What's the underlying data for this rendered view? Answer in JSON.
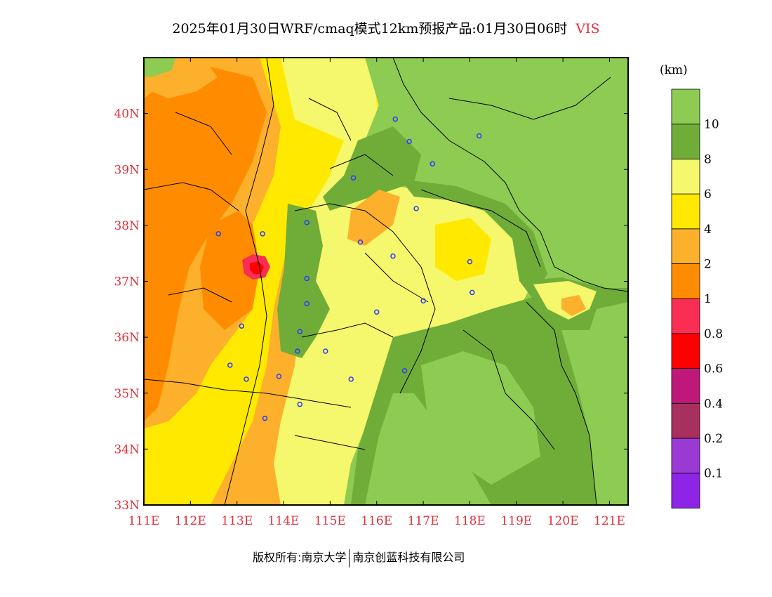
{
  "title": {
    "text": "2025年01月30日WRF/cmaq模式12km预报产品:01月30日06时",
    "variable": "VIS"
  },
  "unit": "(km)",
  "footer": {
    "copyright": "版权所有:南京大学",
    "company": "南京创蓝科技有限公司"
  },
  "map": {
    "lon_range": [
      111,
      121.4
    ],
    "lat_range": [
      33,
      41
    ],
    "x_ticks": [
      "111E",
      "112E",
      "113E",
      "114E",
      "115E",
      "116E",
      "117E",
      "118E",
      "119E",
      "120E",
      "121E"
    ],
    "y_ticks": [
      "33N",
      "34N",
      "35N",
      "36N",
      "37N",
      "38N",
      "39N",
      "40N"
    ],
    "stations": [
      [
        116.4,
        39.9
      ],
      [
        116.7,
        39.5
      ],
      [
        117.2,
        39.1
      ],
      [
        118.2,
        39.6
      ],
      [
        115.5,
        38.85
      ],
      [
        116.85,
        38.3
      ],
      [
        114.5,
        38.05
      ],
      [
        113.55,
        37.85
      ],
      [
        112.6,
        37.85
      ],
      [
        115.65,
        37.7
      ],
      [
        116.35,
        37.45
      ],
      [
        118.0,
        37.35
      ],
      [
        114.5,
        37.05
      ],
      [
        114.5,
        36.6
      ],
      [
        116.0,
        36.45
      ],
      [
        117.0,
        36.65
      ],
      [
        118.05,
        36.8
      ],
      [
        114.35,
        36.1
      ],
      [
        113.1,
        36.2
      ],
      [
        114.3,
        35.75
      ],
      [
        114.9,
        35.75
      ],
      [
        112.85,
        35.5
      ],
      [
        113.9,
        35.3
      ],
      [
        113.2,
        35.25
      ],
      [
        115.45,
        35.25
      ],
      [
        116.6,
        35.4
      ],
      [
        114.35,
        34.8
      ],
      [
        113.6,
        34.55
      ]
    ]
  },
  "legend": {
    "colors": [
      "#8e24e6",
      "#9a39d4",
      "#a8305e",
      "#c0177a",
      "#ff0000",
      "#fa2d55",
      "#ff8c00",
      "#fdb02b",
      "#ffe900",
      "#f5f76c",
      "#6fad38",
      "#8dcb52"
    ],
    "labels": [
      "0.1",
      "0.2",
      "0.4",
      "0.6",
      "0.8",
      "1",
      "2",
      "4",
      "6",
      "8",
      "10"
    ]
  }
}
